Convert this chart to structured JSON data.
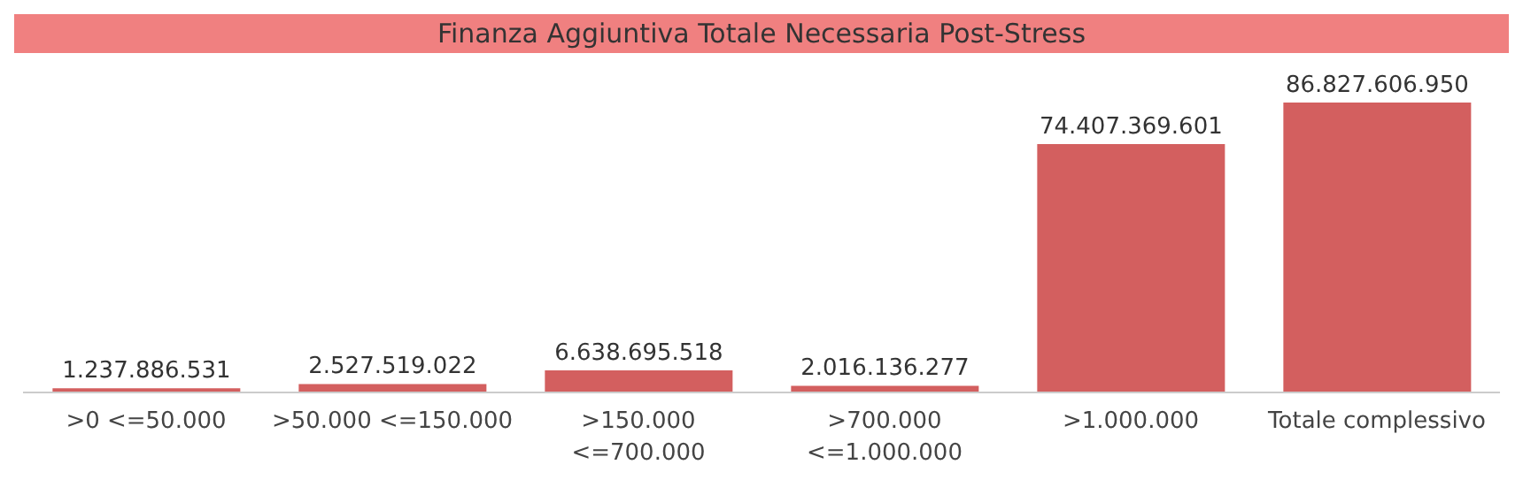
{
  "chart_data": {
    "type": "bar",
    "title": "Finanza Aggiuntiva Totale Necessaria Post-Stress",
    "categories": [
      ">0 <=50.000",
      ">50.000 <=150.000",
      ">150.000 <=700.000",
      ">700.000 <=1.000.000",
      ">1.000.000",
      "Totale complessivo"
    ],
    "values": [
      1237886531,
      2527519022,
      6638695518,
      2016136277,
      74407369601,
      86827606950
    ],
    "value_labels": [
      "1.237.886.531",
      "2.527.519.022",
      "6.638.695.518",
      "2.016.136.277",
      "74.407.369.601",
      "86.827.606.950"
    ],
    "color": "#d35f5f"
  }
}
